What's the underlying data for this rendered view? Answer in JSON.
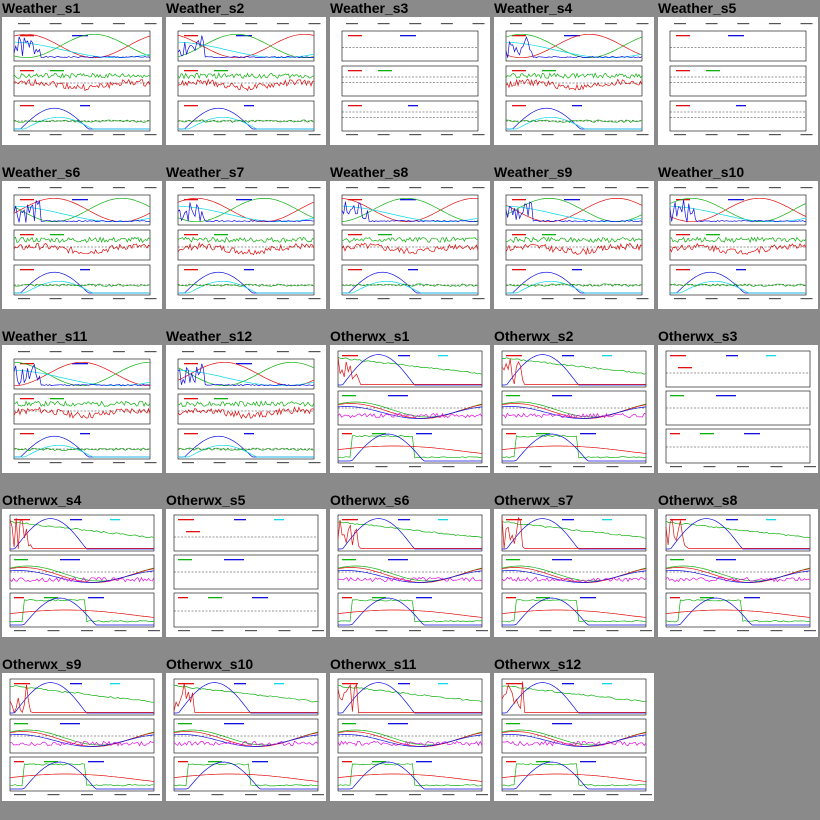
{
  "gallery": {
    "tiles": [
      {
        "label": "Weather_s1",
        "kind": "weather",
        "empty": false
      },
      {
        "label": "Weather_s2",
        "kind": "weather",
        "empty": false
      },
      {
        "label": "Weather_s3",
        "kind": "weather",
        "empty": true
      },
      {
        "label": "Weather_s4",
        "kind": "weather",
        "empty": false
      },
      {
        "label": "Weather_s5",
        "kind": "weather",
        "empty": true
      },
      {
        "label": "Weather_s6",
        "kind": "weather",
        "empty": false
      },
      {
        "label": "Weather_s7",
        "kind": "weather",
        "empty": false
      },
      {
        "label": "Weather_s8",
        "kind": "weather",
        "empty": false
      },
      {
        "label": "Weather_s9",
        "kind": "weather",
        "empty": false
      },
      {
        "label": "Weather_s10",
        "kind": "weather",
        "empty": false
      },
      {
        "label": "Weather_s11",
        "kind": "weather",
        "empty": false
      },
      {
        "label": "Weather_s12",
        "kind": "weather",
        "empty": false
      },
      {
        "label": "Otherwx_s1",
        "kind": "otherwx",
        "empty": false
      },
      {
        "label": "Otherwx_s2",
        "kind": "otherwx",
        "empty": false
      },
      {
        "label": "Otherwx_s3",
        "kind": "otherwx",
        "empty": true
      },
      {
        "label": "Otherwx_s4",
        "kind": "otherwx",
        "empty": false
      },
      {
        "label": "Otherwx_s5",
        "kind": "otherwx",
        "empty": true
      },
      {
        "label": "Otherwx_s6",
        "kind": "otherwx",
        "empty": false
      },
      {
        "label": "Otherwx_s7",
        "kind": "otherwx",
        "empty": false
      },
      {
        "label": "Otherwx_s8",
        "kind": "otherwx",
        "empty": false
      },
      {
        "label": "Otherwx_s9",
        "kind": "otherwx",
        "empty": false
      },
      {
        "label": "Otherwx_s10",
        "kind": "otherwx",
        "empty": false
      },
      {
        "label": "Otherwx_s11",
        "kind": "otherwx",
        "empty": false
      },
      {
        "label": "Otherwx_s12",
        "kind": "otherwx",
        "empty": false
      }
    ]
  },
  "colors": {
    "background": "#8a8a8a",
    "red": "#e01010",
    "green": "#10b010",
    "blue": "#1010e0",
    "cyan": "#10d8e8",
    "magenta": "#e010e0",
    "grid": "#000000"
  }
}
